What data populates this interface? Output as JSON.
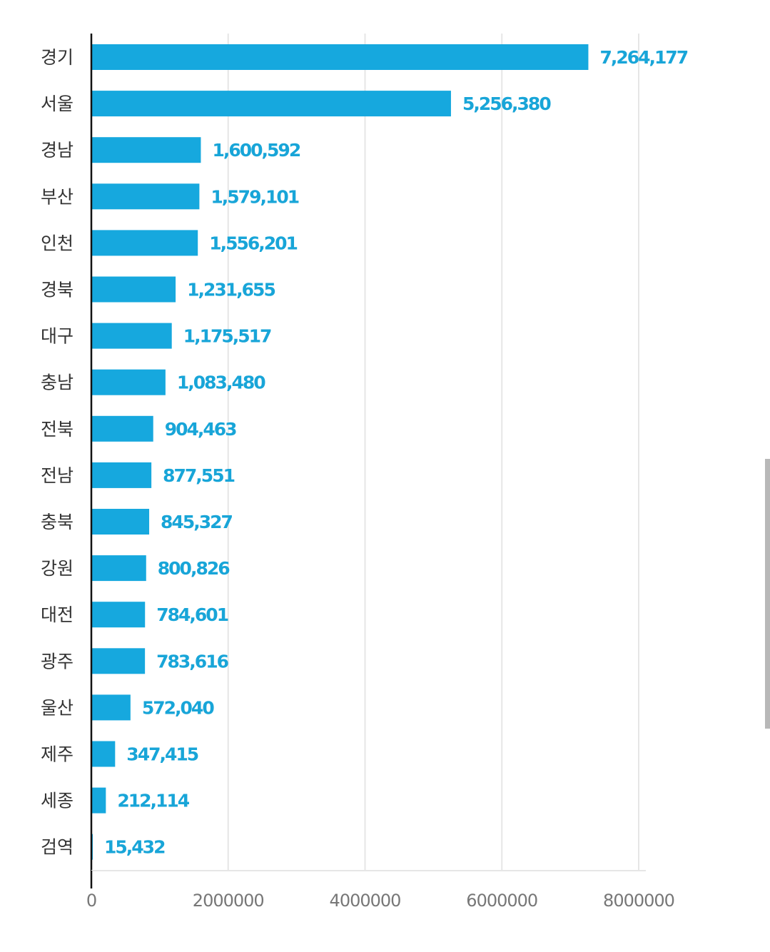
{
  "chart_data": {
    "type": "bar",
    "orientation": "horizontal",
    "categories": [
      "경기",
      "서울",
      "경남",
      "부산",
      "인천",
      "경북",
      "대구",
      "충남",
      "전북",
      "전남",
      "충북",
      "강원",
      "대전",
      "광주",
      "울산",
      "제주",
      "세종",
      "검역"
    ],
    "values": [
      7264177,
      5256380,
      1600592,
      1579101,
      1556201,
      1231655,
      1175517,
      1083480,
      904463,
      877551,
      845327,
      800826,
      784601,
      783616,
      572040,
      347415,
      212114,
      15432
    ],
    "value_labels": [
      "7,264,177",
      "5,256,380",
      "1,600,592",
      "1,579,101",
      "1,556,201",
      "1,231,655",
      "1,175,517",
      "1,083,480",
      "904,463",
      "877,551",
      "845,327",
      "800,826",
      "784,601",
      "783,616",
      "572,040",
      "347,415",
      "212,114",
      "15,432"
    ],
    "x_ticks": [
      0,
      2000000,
      4000000,
      6000000,
      8000000
    ],
    "x_tick_labels": [
      "0",
      "2000000",
      "4000000",
      "6000000",
      "8000000"
    ],
    "xlim": [
      0,
      8000000
    ],
    "grid": "vertical",
    "title": "",
    "xlabel": "",
    "ylabel": "",
    "colors": {
      "bar": "#16a8de",
      "value_label": "#18a5d8",
      "grid": "#e6e6e6",
      "axis": "#111111"
    }
  }
}
